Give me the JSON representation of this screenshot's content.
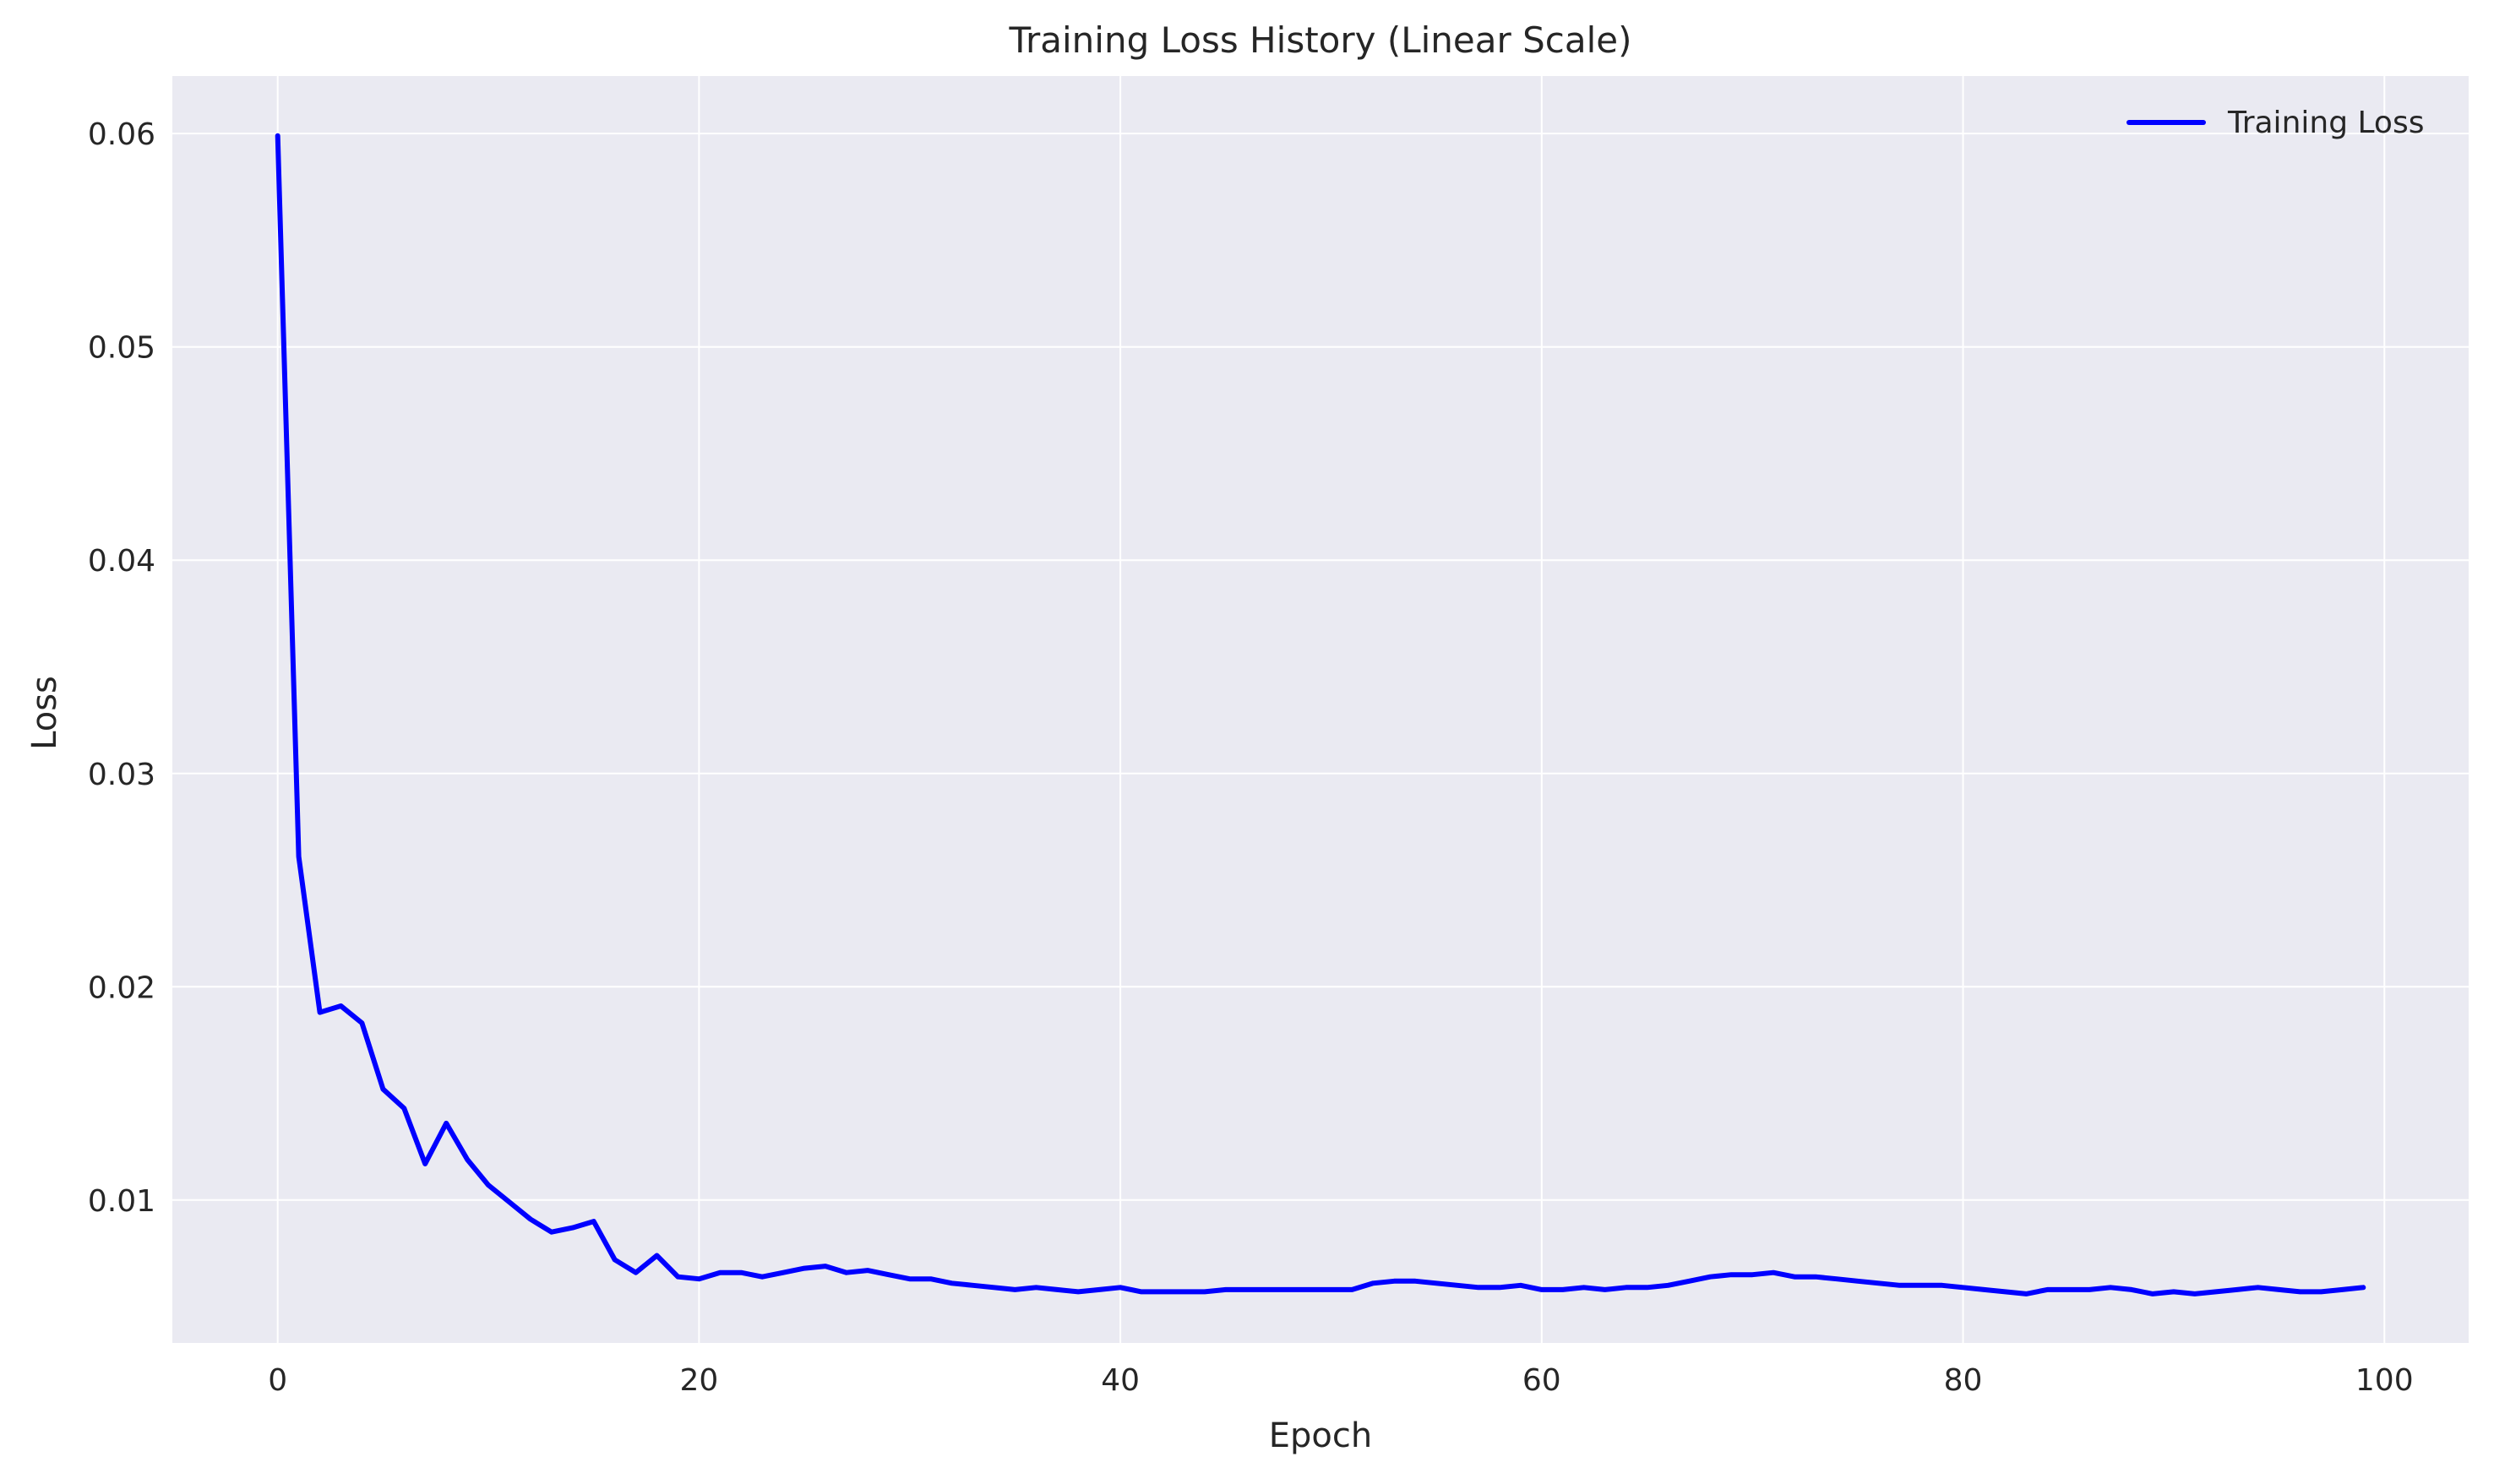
{
  "chart_data": {
    "type": "line",
    "title": "Training Loss History (Linear Scale)",
    "xlabel": "Epoch",
    "ylabel": "Loss",
    "xlim": [
      -5,
      104
    ],
    "ylim": [
      0.0033,
      0.0627
    ],
    "xticks": [
      0,
      20,
      40,
      60,
      80,
      100
    ],
    "xtick_labels": [
      "0",
      "20",
      "40",
      "60",
      "80",
      "100"
    ],
    "yticks": [
      0.01,
      0.02,
      0.03,
      0.04,
      0.05,
      0.06
    ],
    "ytick_labels": [
      "0.01",
      "0.02",
      "0.03",
      "0.04",
      "0.05",
      "0.06"
    ],
    "grid": true,
    "legend_position": "top-right",
    "series": [
      {
        "name": "Training Loss",
        "color": "#0000ff",
        "x": [
          0,
          1,
          2,
          3,
          4,
          5,
          6,
          7,
          8,
          9,
          10,
          11,
          12,
          13,
          14,
          15,
          16,
          17,
          18,
          19,
          20,
          21,
          22,
          23,
          24,
          25,
          26,
          27,
          28,
          29,
          30,
          31,
          32,
          33,
          34,
          35,
          36,
          37,
          38,
          39,
          40,
          41,
          42,
          43,
          44,
          45,
          46,
          47,
          48,
          49,
          50,
          51,
          52,
          53,
          54,
          55,
          56,
          57,
          58,
          59,
          60,
          61,
          62,
          63,
          64,
          65,
          66,
          67,
          68,
          69,
          70,
          71,
          72,
          73,
          74,
          75,
          76,
          77,
          78,
          79,
          80,
          81,
          82,
          83,
          84,
          85,
          86,
          87,
          88,
          89,
          90,
          91,
          92,
          93,
          94,
          95,
          96,
          97,
          98,
          99
        ],
        "values": [
          0.0599,
          0.0261,
          0.0188,
          0.0191,
          0.0183,
          0.0152,
          0.0143,
          0.0117,
          0.0136,
          0.0119,
          0.0107,
          0.0099,
          0.0091,
          0.0085,
          0.0087,
          0.009,
          0.0072,
          0.0066,
          0.0074,
          0.0064,
          0.0063,
          0.0066,
          0.0066,
          0.0064,
          0.0066,
          0.0068,
          0.0069,
          0.0066,
          0.0067,
          0.0065,
          0.0063,
          0.0063,
          0.0061,
          0.006,
          0.0059,
          0.0058,
          0.0059,
          0.0058,
          0.0057,
          0.0058,
          0.0059,
          0.0057,
          0.0057,
          0.0057,
          0.0057,
          0.0058,
          0.0058,
          0.0058,
          0.0058,
          0.0058,
          0.0058,
          0.0058,
          0.0061,
          0.0062,
          0.0062,
          0.0061,
          0.006,
          0.0059,
          0.0059,
          0.006,
          0.0058,
          0.0058,
          0.0059,
          0.0058,
          0.0059,
          0.0059,
          0.006,
          0.0062,
          0.0064,
          0.0065,
          0.0065,
          0.0066,
          0.0064,
          0.0064,
          0.0063,
          0.0062,
          0.0061,
          0.006,
          0.006,
          0.006,
          0.0059,
          0.0058,
          0.0057,
          0.0056,
          0.0058,
          0.0058,
          0.0058,
          0.0059,
          0.0058,
          0.0056,
          0.0057,
          0.0056,
          0.0057,
          0.0058,
          0.0059,
          0.0058,
          0.0057,
          0.0057,
          0.0058,
          0.0059
        ]
      }
    ]
  },
  "colors": {
    "plot_background": "#eaeaf2",
    "grid": "#ffffff",
    "text": "#262626",
    "line": "#0000ff"
  }
}
